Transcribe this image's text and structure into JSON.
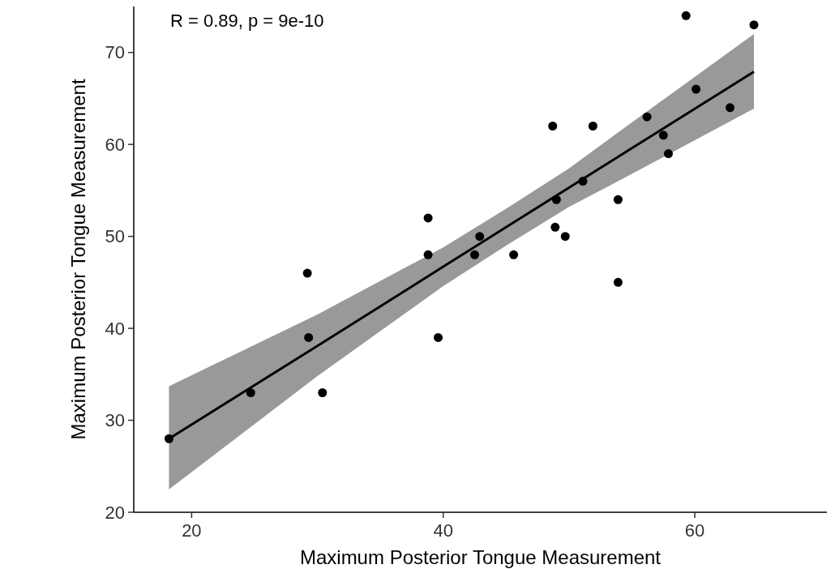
{
  "chart_data": {
    "type": "scatter",
    "xlabel": "Maximum Posterior Tongue Measurement",
    "ylabel": "Maximum Posterior Tongue Measurement",
    "annotations": [
      "R = 0.89, p = 9e-10"
    ],
    "x": [
      18.2,
      24.7,
      29.2,
      29.3,
      30.4,
      38.8,
      38.8,
      39.6,
      42.5,
      42.9,
      45.6,
      48.7,
      49.0,
      48.9,
      49.7,
      51.1,
      51.9,
      53.9,
      53.9,
      56.2,
      57.5,
      57.9,
      59.3,
      60.1,
      62.8,
      64.7
    ],
    "xlim": [
      15.4,
      70.5
    ],
    "xticks": [
      20,
      40,
      60
    ],
    "ylim": [
      20,
      75
    ],
    "yticks": [
      20,
      30,
      40,
      50,
      60,
      70
    ],
    "grid": false,
    "series": [
      {
        "color": "#000000",
        "marker": "circle",
        "values": [
          28,
          33,
          46,
          39,
          33,
          52,
          48,
          39,
          48,
          50,
          48,
          62,
          54,
          51,
          50,
          56,
          62,
          54,
          45,
          63,
          61,
          59,
          74,
          66,
          64,
          73
        ]
      },
      {
        "type": "line",
        "marker": "none",
        "color": "#000000",
        "x": [
          18.2,
          30,
          40,
          45,
          50,
          55,
          64.7
        ],
        "values": [
          28.0,
          38.1,
          46.7,
          51.0,
          55.3,
          59.6,
          67.9
        ],
        "lower": [
          22.5,
          34.8,
          44.6,
          49.0,
          53.2,
          56.8,
          63.9
        ],
        "upper": [
          33.7,
          41.5,
          48.8,
          53.0,
          57.4,
          62.4,
          72.0
        ]
      }
    ]
  }
}
